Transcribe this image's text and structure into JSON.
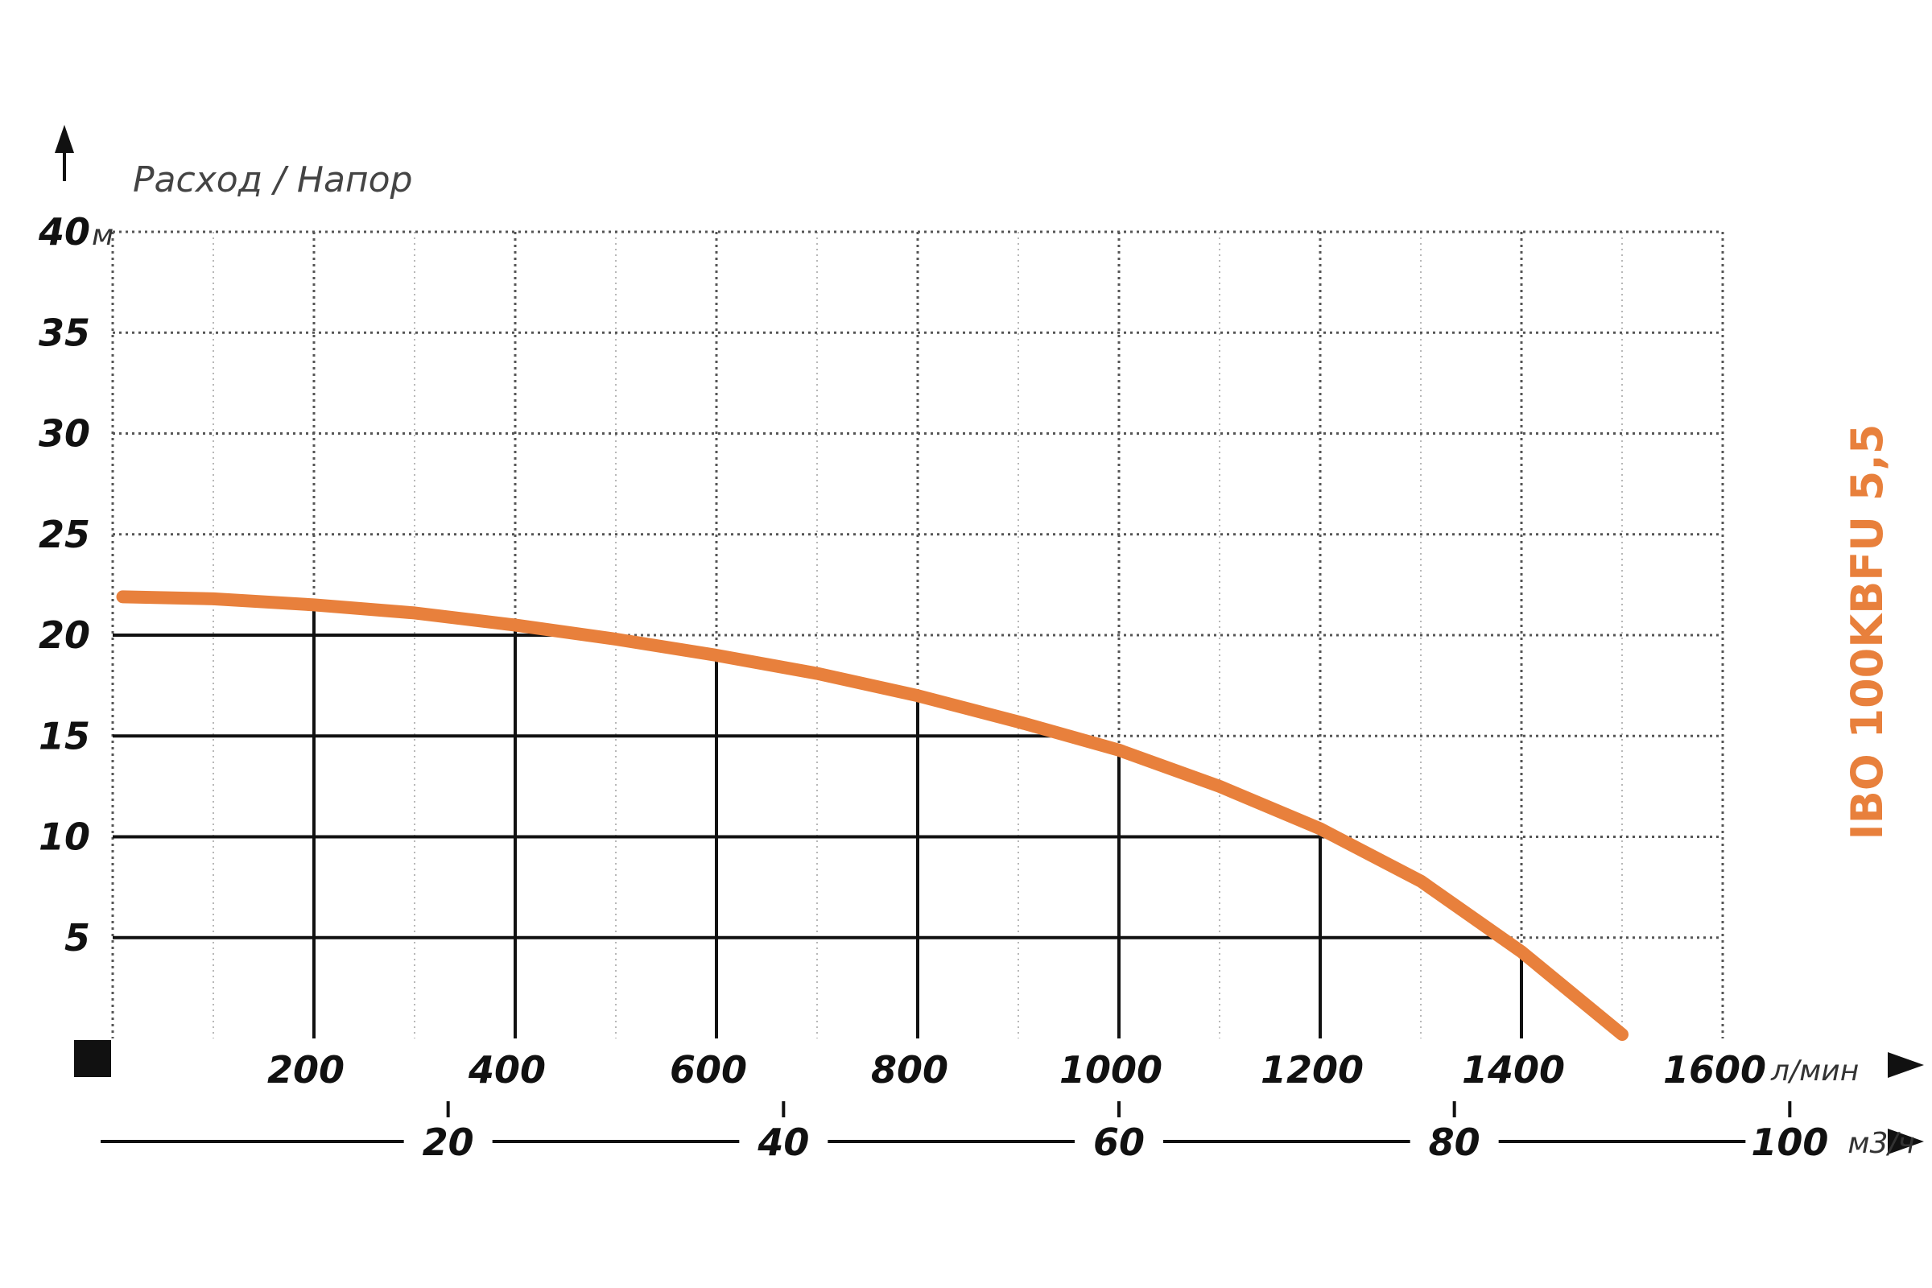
{
  "chart_data": {
    "type": "line",
    "title": "Расход / Напор",
    "model_label": "IBO 100KBFU 5,5",
    "y_unit": "м",
    "x_unit": "л/мин",
    "x2_unit": "м3/ч",
    "y_ticks": [
      "5",
      "10",
      "15",
      "20",
      "25",
      "30",
      "35",
      "40"
    ],
    "x_ticks": [
      "200",
      "400",
      "600",
      "800",
      "1000",
      "1200",
      "1400",
      "1600"
    ],
    "x2_ticks": [
      "20",
      "40",
      "60",
      "80",
      "100"
    ],
    "xlim": [
      0,
      1600
    ],
    "ylim": [
      0,
      40
    ],
    "x2_per_x": 0.06,
    "series_color": "#e8803c",
    "series": [
      {
        "x": [
          10,
          100,
          200,
          300,
          400,
          500,
          600,
          700,
          800,
          900,
          1000,
          1100,
          1200,
          1300,
          1400,
          1500
        ],
        "y": [
          21.9,
          21.8,
          21.5,
          21.1,
          20.5,
          19.8,
          19.0,
          18.1,
          17.0,
          15.7,
          14.3,
          12.5,
          10.4,
          7.8,
          4.3,
          0.2
        ]
      }
    ],
    "drop_points": [
      {
        "x": 200,
        "y": 21.5
      },
      {
        "x": 400,
        "y": 20.5
      },
      {
        "x": 600,
        "y": 19.0
      },
      {
        "x": 800,
        "y": 17.0
      },
      {
        "x": 1000,
        "y": 14.3
      },
      {
        "x": 1200,
        "y": 10.4
      },
      {
        "x": 1400,
        "y": 4.3
      }
    ],
    "grid": true
  }
}
